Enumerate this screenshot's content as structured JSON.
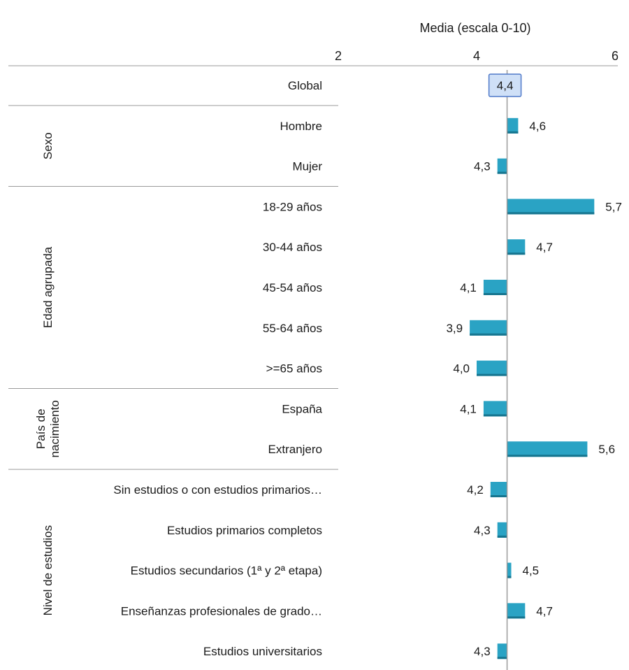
{
  "chart_data": {
    "type": "bar",
    "orientation": "horizontal",
    "xlabel": "Media (escala 0-10)",
    "xlim": [
      2,
      6
    ],
    "x_ticks": [
      "2",
      "4",
      "6"
    ],
    "x_axis_position": "top",
    "baseline": 4.44,
    "grid": false,
    "legend": "none",
    "bar_color": "#2aa3c4",
    "global_box_fill": "#cfe0f7",
    "global_box_border": "#4f79c9",
    "global": {
      "label": "Global",
      "value": 4.4,
      "value_label": "4,4"
    },
    "groups": [
      {
        "name": "Sexo",
        "name_lines": [
          "Sexo"
        ],
        "categories": [
          {
            "label": "Hombre",
            "value": 4.6,
            "value_label": "4,6"
          },
          {
            "label": "Mujer",
            "value": 4.3,
            "value_label": "4,3"
          }
        ]
      },
      {
        "name": "Edad agrupada",
        "name_lines": [
          "Edad agrupada"
        ],
        "categories": [
          {
            "label": "18-29 años",
            "value": 5.7,
            "value_label": "5,7"
          },
          {
            "label": "30-44 años",
            "value": 4.7,
            "value_label": "4,7"
          },
          {
            "label": "45-54 años",
            "value": 4.1,
            "value_label": "4,1"
          },
          {
            "label": "55-64 años",
            "value": 3.9,
            "value_label": "3,9"
          },
          {
            "label": ">=65 años",
            "value": 4.0,
            "value_label": "4,0"
          }
        ]
      },
      {
        "name": "País de nacimiento",
        "name_lines": [
          "País de",
          "nacimiento"
        ],
        "categories": [
          {
            "label": "España",
            "value": 4.1,
            "value_label": "4,1"
          },
          {
            "label": "Extranjero",
            "value": 5.6,
            "value_label": "5,6"
          }
        ]
      },
      {
        "name": "Nivel de estudios",
        "name_lines": [
          "Nivel de estudios"
        ],
        "categories": [
          {
            "label": "Sin estudios o con estudios primarios…",
            "value": 4.2,
            "value_label": "4,2"
          },
          {
            "label": "Estudios primarios completos",
            "value": 4.3,
            "value_label": "4,3"
          },
          {
            "label": "Estudios secundarios (1ª y 2ª etapa)",
            "value": 4.5,
            "value_label": "4,5"
          },
          {
            "label": "Enseñanzas profesionales de grado…",
            "value": 4.7,
            "value_label": "4,7"
          },
          {
            "label": "Estudios universitarios",
            "value": 4.3,
            "value_label": "4,3"
          }
        ]
      }
    ]
  }
}
